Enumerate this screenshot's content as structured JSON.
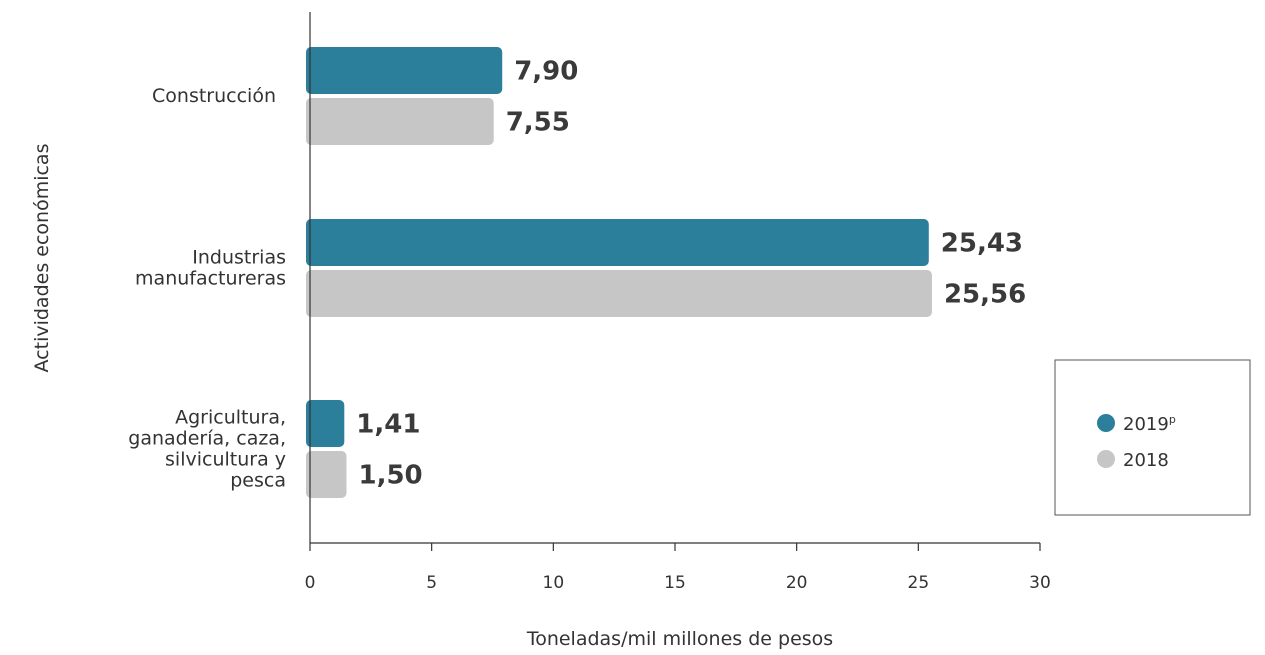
{
  "chart_data": {
    "type": "bar",
    "orientation": "horizontal",
    "categories": [
      [
        "Construcción"
      ],
      [
        "Industrias",
        "manufactureras"
      ],
      [
        "Agricultura,",
        "ganadería, caza,",
        "silvicultura y",
        "pesca"
      ]
    ],
    "series": [
      {
        "name": "2019",
        "name_superscript": "p",
        "color": "#2b7f9a",
        "values": [
          7.9,
          25.43,
          1.41
        ],
        "labels": [
          "7,90",
          "25,43",
          "1,41"
        ]
      },
      {
        "name": "2018",
        "color": "#c6c6c6",
        "values": [
          7.55,
          25.56,
          1.5
        ],
        "labels": [
          "7,55",
          "25,56",
          "1,50"
        ]
      }
    ],
    "xlabel": "Toneladas/mil millones de pesos",
    "ylabel": "Actividades económicas",
    "xlim": [
      0,
      30
    ],
    "xticks": [
      0,
      5,
      10,
      15,
      20,
      25,
      30
    ],
    "grid": false,
    "legend_position": "right"
  }
}
